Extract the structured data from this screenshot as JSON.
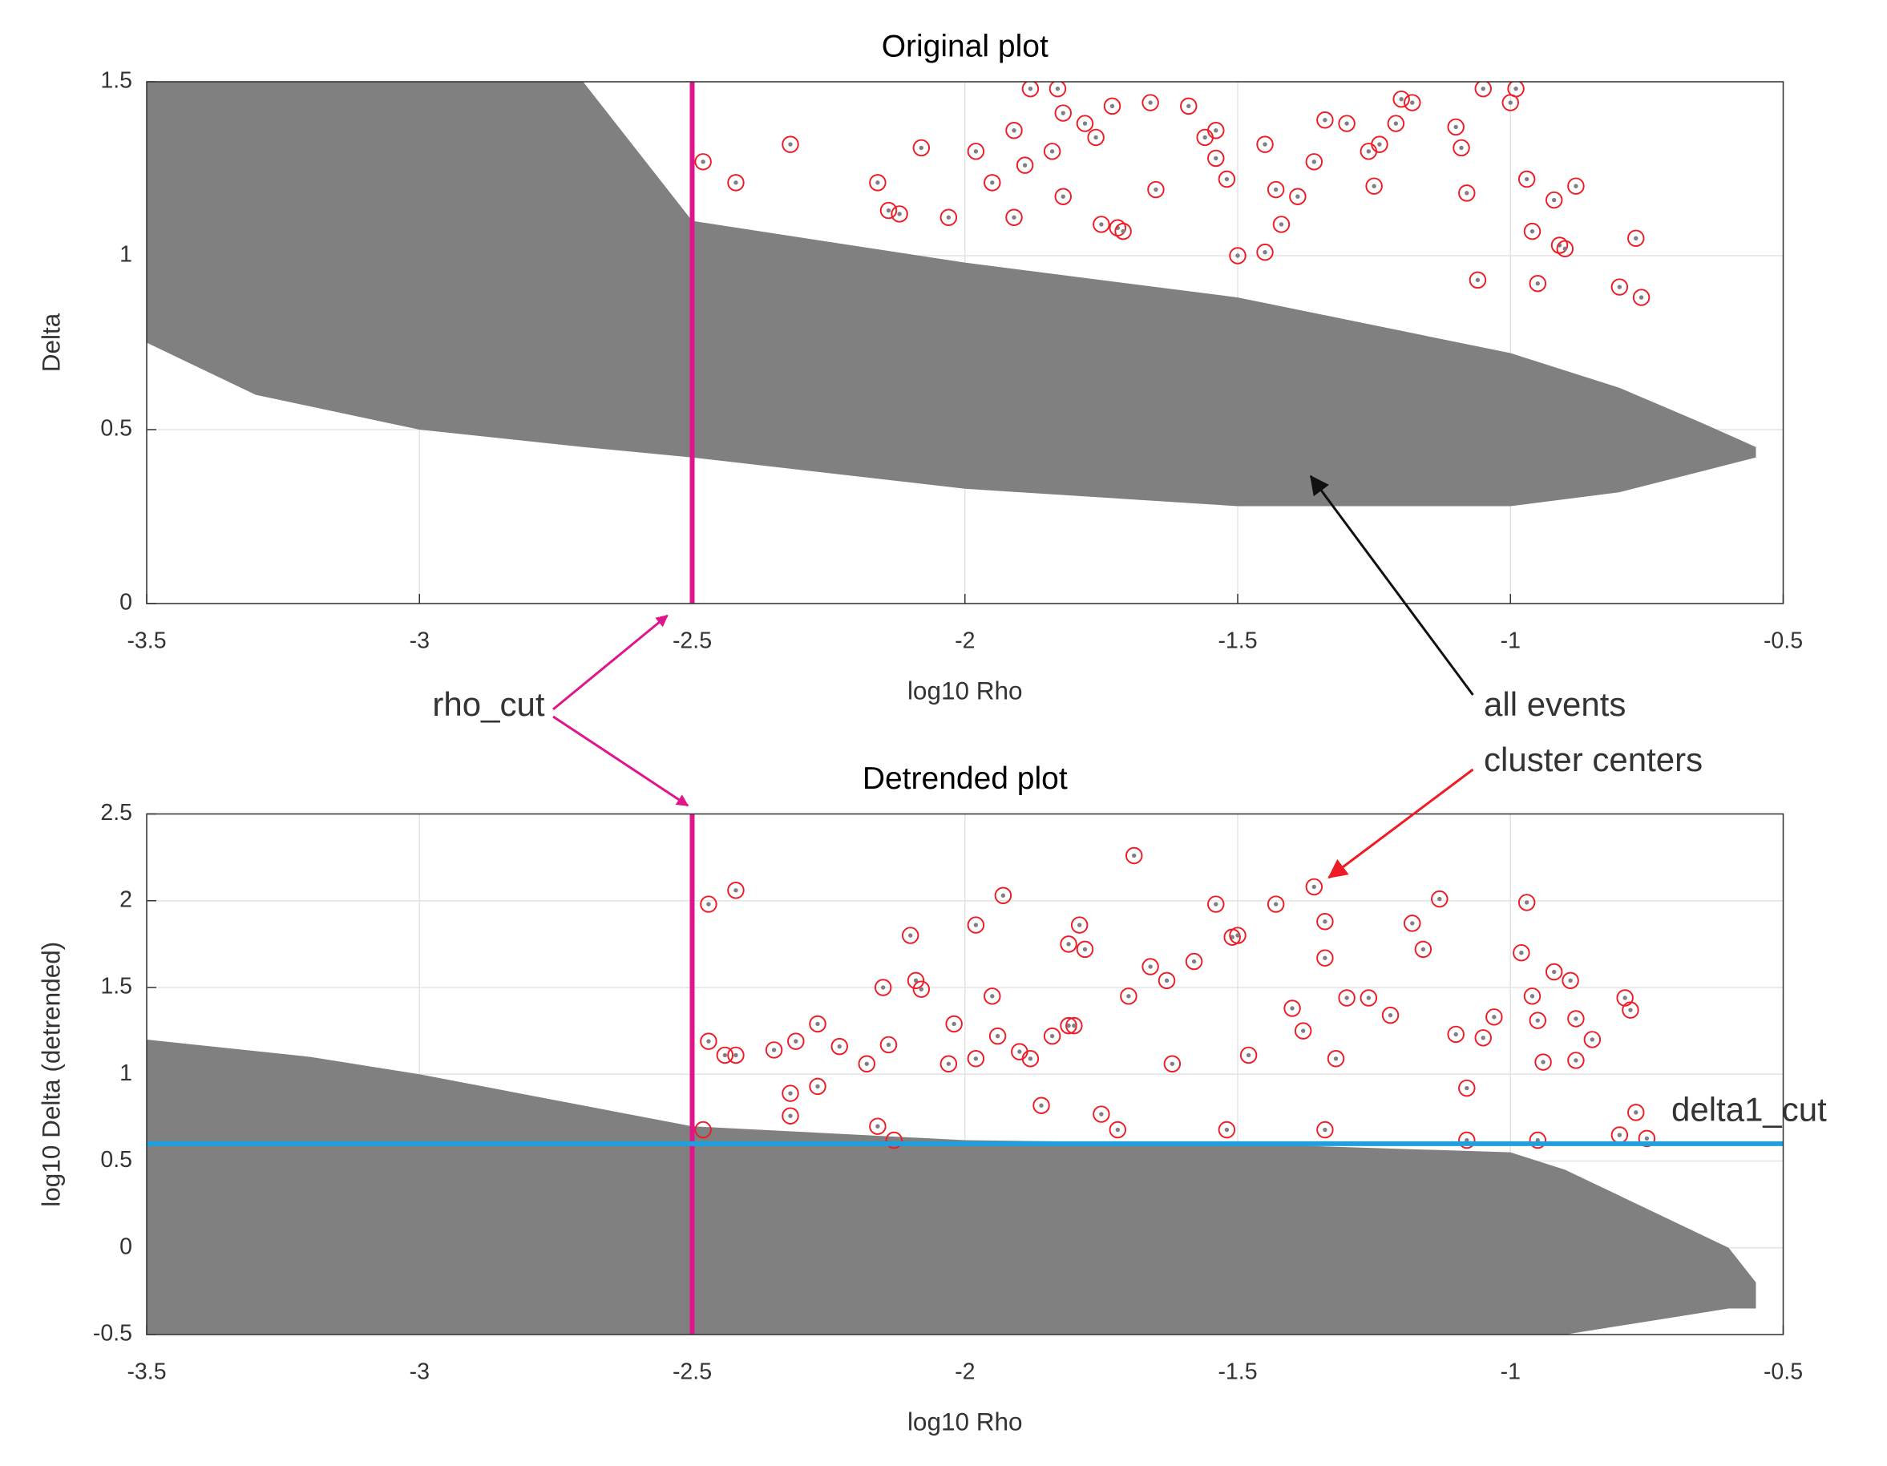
{
  "chart_data": [
    {
      "type": "scatter",
      "title": "Original plot",
      "xlabel": "log10 Rho",
      "ylabel": "Delta",
      "xlim": [
        -3.5,
        -0.5
      ],
      "ylim": [
        0,
        1.5
      ],
      "xticks": [
        -3.5,
        -3,
        -2.5,
        -2,
        -1.5,
        -1,
        -0.5
      ],
      "yticks": [
        0,
        0.5,
        1,
        1.5
      ],
      "grid": true,
      "cloud": {
        "color": "#808080",
        "x": [
          -3.5,
          -3.3,
          -3.0,
          -2.7,
          -2.5,
          -2.0,
          -1.5,
          -1.0,
          -0.8,
          -0.65,
          -0.55
        ],
        "upper": [
          1.5,
          1.5,
          1.5,
          1.5,
          1.1,
          0.98,
          0.88,
          0.72,
          0.62,
          0.52,
          0.45
        ],
        "lower": [
          0.75,
          0.6,
          0.5,
          0.45,
          0.42,
          0.33,
          0.28,
          0.28,
          0.32,
          0.38,
          0.42
        ]
      },
      "series": [
        {
          "color": "#ee1c25",
          "x": [
            -2.48,
            -2.42,
            -2.32,
            -2.16,
            -2.14,
            -2.12,
            -2.08,
            -2.03,
            -1.98,
            -1.95,
            -1.91,
            -1.89,
            -1.88,
            -1.91,
            -1.84,
            -1.83,
            -1.82,
            -1.82,
            -1.78,
            -1.76,
            -1.75,
            -1.72,
            -1.71,
            -1.73,
            -1.66,
            -1.65,
            -1.59,
            -1.56,
            -1.54,
            -1.54,
            -1.52,
            -1.5,
            -1.45,
            -1.45,
            -1.43,
            -1.42,
            -1.39,
            -1.36,
            -1.34,
            -1.3,
            -1.26,
            -1.25,
            -1.24,
            -1.21,
            -1.2,
            -1.18,
            -1.1,
            -1.09,
            -1.08,
            -1.06,
            -0.97,
            -0.96,
            -0.95,
            -0.92,
            -0.91,
            -0.88,
            -0.99,
            -1.05,
            -1.0,
            -0.9,
            -0.8,
            -0.76,
            -0.77
          ],
          "values": [
            1.27,
            1.21,
            1.32,
            1.21,
            1.13,
            1.12,
            1.31,
            1.11,
            1.3,
            1.21,
            1.11,
            1.26,
            1.48,
            1.36,
            1.3,
            1.48,
            1.41,
            1.17,
            1.38,
            1.34,
            1.09,
            1.08,
            1.07,
            1.43,
            1.44,
            1.19,
            1.43,
            1.34,
            1.36,
            1.28,
            1.22,
            1.0,
            1.01,
            1.32,
            1.19,
            1.09,
            1.17,
            1.27,
            1.39,
            1.38,
            1.3,
            1.2,
            1.32,
            1.38,
            1.45,
            1.44,
            1.37,
            1.31,
            1.18,
            0.93,
            1.22,
            1.07,
            0.92,
            1.16,
            1.03,
            1.2,
            1.48,
            1.48,
            1.44,
            1.02,
            0.91,
            0.88,
            1.05
          ]
        }
      ],
      "vlines": [
        {
          "value": -2.5,
          "color": "#e0158c"
        }
      ]
    },
    {
      "type": "scatter",
      "title": "Detrended plot",
      "xlabel": "log10 Rho",
      "ylabel": "log10 Delta (detrended)",
      "xlim": [
        -3.5,
        -0.5
      ],
      "ylim": [
        -0.5,
        2.5
      ],
      "xticks": [
        -3.5,
        -3,
        -2.5,
        -2,
        -1.5,
        -1,
        -0.5
      ],
      "yticks": [
        -0.5,
        0,
        0.5,
        1,
        1.5,
        2,
        2.5
      ],
      "grid": true,
      "cloud": {
        "color": "#808080",
        "x": [
          -3.5,
          -3.2,
          -3.0,
          -2.5,
          -2.0,
          -1.5,
          -1.0,
          -0.9,
          -0.8,
          -0.7,
          -0.6,
          -0.55
        ],
        "upper": [
          1.2,
          1.1,
          1.0,
          0.7,
          0.62,
          0.6,
          0.55,
          0.45,
          0.3,
          0.15,
          0.0,
          -0.2
        ],
        "lower": [
          -0.5,
          -0.5,
          -0.5,
          -0.5,
          -0.5,
          -0.5,
          -0.5,
          -0.5,
          -0.45,
          -0.4,
          -0.35,
          -0.35
        ]
      },
      "series": [
        {
          "color": "#ee1c25",
          "x": [
            -2.47,
            -2.42,
            -2.47,
            -2.44,
            -2.42,
            -2.35,
            -2.32,
            -2.32,
            -2.31,
            -2.27,
            -2.27,
            -2.23,
            -2.18,
            -2.16,
            -2.15,
            -2.14,
            -2.13,
            -2.1,
            -2.09,
            -2.08,
            -2.03,
            -2.02,
            -1.98,
            -1.98,
            -1.95,
            -1.94,
            -1.93,
            -1.9,
            -1.88,
            -1.86,
            -1.84,
            -1.81,
            -1.81,
            -1.8,
            -1.79,
            -1.78,
            -1.75,
            -1.69,
            -1.7,
            -1.66,
            -1.63,
            -1.62,
            -1.58,
            -1.54,
            -1.51,
            -1.5,
            -1.48,
            -1.43,
            -1.4,
            -1.36,
            -1.34,
            -1.34,
            -1.38,
            -1.32,
            -1.3,
            -1.26,
            -1.22,
            -1.18,
            -1.16,
            -1.13,
            -1.1,
            -1.08,
            -1.05,
            -1.03,
            -0.97,
            -0.98,
            -0.96,
            -0.95,
            -0.92,
            -0.89,
            -0.88,
            -0.85,
            -0.79,
            -0.78,
            -0.77,
            -0.75,
            -0.8,
            -0.88,
            -0.94,
            -0.95,
            -1.08,
            -1.34,
            -1.52,
            -1.72,
            -2.48
          ],
          "values": [
            1.98,
            2.06,
            1.19,
            1.11,
            1.11,
            1.14,
            0.89,
            0.76,
            1.19,
            1.29,
            0.93,
            1.16,
            1.06,
            0.7,
            1.5,
            1.17,
            0.62,
            1.8,
            1.54,
            1.49,
            1.06,
            1.29,
            1.86,
            1.09,
            1.45,
            1.22,
            2.03,
            1.13,
            1.09,
            0.82,
            1.22,
            1.28,
            1.75,
            1.28,
            1.86,
            1.72,
            0.77,
            2.26,
            1.45,
            1.62,
            1.54,
            1.06,
            1.65,
            1.98,
            1.79,
            1.8,
            1.11,
            1.98,
            1.38,
            2.08,
            1.88,
            1.67,
            1.25,
            1.09,
            1.44,
            1.44,
            1.34,
            1.87,
            1.72,
            2.01,
            1.23,
            0.92,
            1.21,
            1.33,
            1.99,
            1.7,
            1.45,
            1.31,
            1.59,
            1.54,
            1.32,
            1.2,
            1.44,
            1.37,
            0.78,
            0.63,
            0.65,
            1.08,
            1.07,
            0.62,
            0.62,
            0.68,
            0.68,
            0.68,
            0.68
          ]
        }
      ],
      "vlines": [
        {
          "value": -2.5,
          "color": "#e0158c"
        }
      ],
      "hlines": [
        {
          "value": 0.6,
          "color": "#1fa0dc"
        }
      ]
    }
  ],
  "annotations": [
    {
      "text": "rho_cut",
      "color": "#e0158c"
    },
    {
      "text": "all events",
      "color": "#808080"
    },
    {
      "text": "cluster centers",
      "color": "#ee1c25"
    },
    {
      "text": "delta1_cut",
      "color": "#1fa0dc"
    }
  ]
}
